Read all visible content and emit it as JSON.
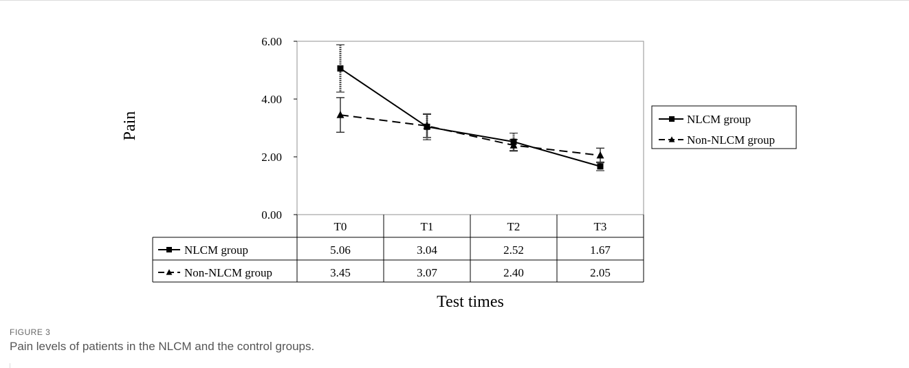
{
  "figure": {
    "label": "FIGURE 3",
    "caption": "Pain levels of patients in the NLCM and the control groups."
  },
  "chart_data": {
    "type": "line",
    "title": "",
    "xlabel": "Test times",
    "ylabel": "Pain",
    "ylim": [
      0,
      6
    ],
    "yticks": [
      "0.00",
      "2.00",
      "4.00",
      "6.00"
    ],
    "categories": [
      "T0",
      "T1",
      "T2",
      "T3"
    ],
    "grid": false,
    "legend_position": "right",
    "series": [
      {
        "name": "NLCM group",
        "marker": "square",
        "line": "solid",
        "values": [
          5.06,
          3.04,
          2.52,
          1.67
        ],
        "value_labels": [
          "5.06",
          "3.04",
          "2.52",
          "1.67"
        ],
        "error": [
          0.82,
          0.45,
          0.3,
          0.15
        ]
      },
      {
        "name": "Non-NLCM group",
        "marker": "triangle",
        "line": "dashed",
        "values": [
          3.45,
          3.07,
          2.4,
          2.05
        ],
        "value_labels": [
          "3.45",
          "3.07",
          "2.40",
          "2.05"
        ],
        "error": [
          0.6,
          0.4,
          0.2,
          0.25
        ]
      }
    ]
  }
}
